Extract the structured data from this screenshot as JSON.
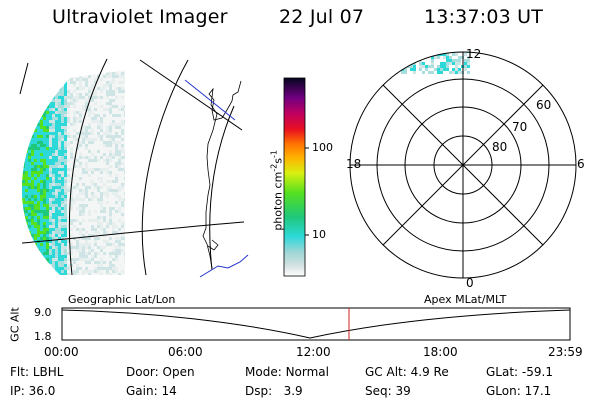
{
  "header": {
    "title": "Ultraviolet Imager",
    "date": "22 Jul 07",
    "time": "13:37:03 UT"
  },
  "colorbar": {
    "unit_prefix": "photon cm",
    "unit_exp1": "-2",
    "unit_mid": "s",
    "unit_exp2": "-1",
    "ticks": [
      "100",
      "10"
    ]
  },
  "polar": {
    "mlt_labels": {
      "top": "12",
      "left": "18",
      "right": "6",
      "bottom": "0"
    },
    "lat_labels": [
      "60",
      "70",
      "80"
    ]
  },
  "timeline": {
    "y_axis_label": "GC Alt",
    "y_ticks": [
      "9.0",
      "1.8"
    ],
    "left_label": "Geographic Lat/Lon",
    "right_label": "Apex MLat/MLT",
    "x_ticks": [
      "00:00",
      "06:00",
      "12:00",
      "18:00",
      "23:59"
    ]
  },
  "info": {
    "row1": [
      {
        "label": "Flt:",
        "value": "LBHL"
      },
      {
        "label": "Door:",
        "value": "Open"
      },
      {
        "label": "Mode:",
        "value": "Normal"
      },
      {
        "label": "GC Alt:",
        "value": "4.9 Re"
      },
      {
        "label": "GLat:",
        "value": "-59.1"
      }
    ],
    "row2": [
      {
        "label": "IP:",
        "value": "36.0"
      },
      {
        "label": "Gain:",
        "value": "14"
      },
      {
        "label": "Dsp:",
        "value": "3.9"
      },
      {
        "label": "Seq:",
        "value": "39"
      },
      {
        "label": "GLon:",
        "value": "17.1"
      }
    ]
  },
  "colors": {
    "marker": "#cc2222",
    "coast": "#000000",
    "blue_line": "#2233cc"
  }
}
